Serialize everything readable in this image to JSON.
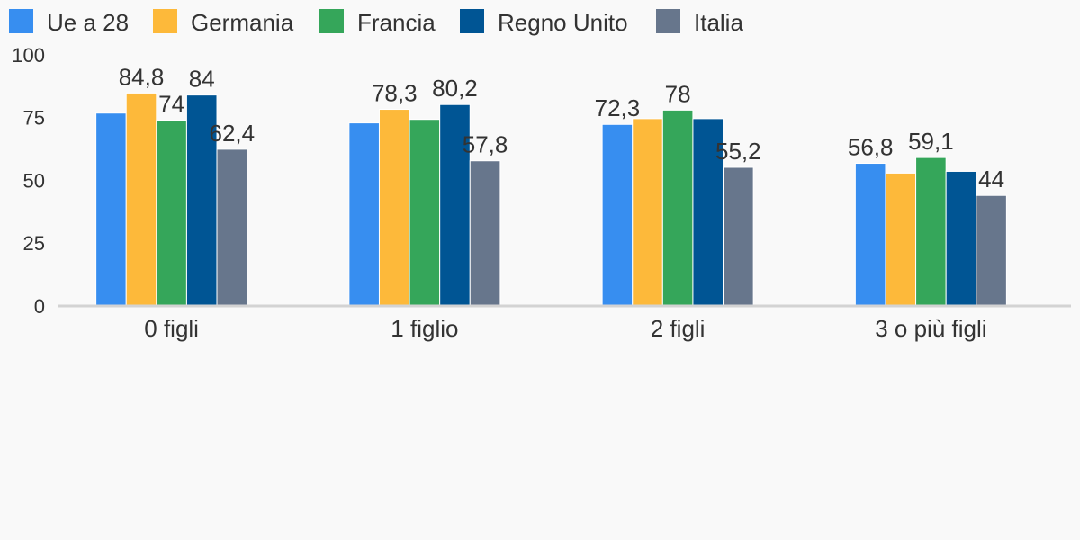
{
  "chart_data": {
    "type": "bar",
    "categories": [
      "0 figli",
      "1 figlio",
      "2 figli",
      "3 o più figli"
    ],
    "series": [
      {
        "name": "Ue a 28",
        "color": "#378ef0",
        "values": [
          76.8,
          72.9,
          72.3,
          56.8
        ],
        "value_labels": [
          null,
          null,
          "72,3",
          "56,8"
        ]
      },
      {
        "name": "Germania",
        "color": "#fdb93a",
        "values": [
          84.8,
          78.3,
          74.6,
          52.9
        ],
        "value_labels": [
          "84,8",
          "78,3",
          null,
          null
        ]
      },
      {
        "name": "Francia",
        "color": "#35a65a",
        "values": [
          74,
          74.3,
          78,
          59.1
        ],
        "value_labels": [
          "74",
          null,
          "78",
          "59,1"
        ]
      },
      {
        "name": "Regno Unito",
        "color": "#005594",
        "values": [
          84,
          80.2,
          74.6,
          53.6
        ],
        "value_labels": [
          "84",
          "80,2",
          null,
          null
        ]
      },
      {
        "name": "Italia",
        "color": "#67768c",
        "values": [
          62.4,
          57.8,
          55.2,
          44
        ],
        "value_labels": [
          "62,4",
          "57,8",
          "55,2",
          "44"
        ]
      }
    ],
    "ylim": [
      0,
      100
    ],
    "yticks": [
      0,
      25,
      50,
      75,
      100
    ],
    "grid": false
  }
}
